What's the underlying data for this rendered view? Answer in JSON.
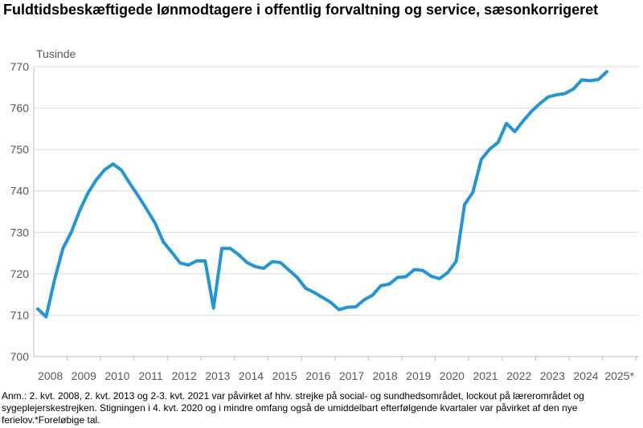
{
  "title": "Fuldtidsbeskæftigede lønmodtagere i offentlig forvaltning og service, sæsonkorrigeret",
  "footnote": "Anm.: 2. kvt. 2008, 2. kvt. 2013 og 2-3. kvt. 2021 var påvirket af hhv. strejke på social- og sundhedsområdet, lockout på lærerområdet og sygeplejerskestrejken. Stigningen i 4. kvt. 2020 og i mindre omfang også de umiddelbart efterfølgende kvartaler var påvirket af den nye ferielov.*Foreløbige tal.",
  "chart_data": {
    "type": "line",
    "title": "Fuldtidsbeskæftigede lønmodtagere i offentlig forvaltning og service, sæsonkorrigeret",
    "ylabel": "Tusinde",
    "xlabel": "",
    "ylim": [
      700,
      770
    ],
    "yticks": [
      700,
      710,
      720,
      730,
      740,
      750,
      760,
      770
    ],
    "grid": true,
    "legend": "none",
    "line_color": "#1f96d6",
    "x_tick_labels": [
      "2008",
      "2009",
      "2010",
      "2011",
      "2012",
      "2013",
      "2014",
      "2015",
      "2016",
      "2017",
      "2018",
      "2019",
      "2020",
      "2021",
      "2022",
      "2023",
      "2024",
      "2025*"
    ],
    "series": [
      {
        "values": [
          711.5,
          709.6,
          718.5,
          726.1,
          730.0,
          735.2,
          739.5,
          742.7,
          745.1,
          746.5,
          745.0,
          741.8,
          738.8,
          735.6,
          732.3,
          727.7,
          725.2,
          722.6,
          722.1,
          723.1,
          723.1,
          711.7,
          726.1,
          726.1,
          724.6,
          722.7,
          721.7,
          721.3,
          722.9,
          722.7,
          720.9,
          719.1,
          716.5,
          715.5,
          714.3,
          713.1,
          711.3,
          711.9,
          712.0,
          713.7,
          714.8,
          717.1,
          717.5,
          719.1,
          719.3,
          721.0,
          720.8,
          719.4,
          718.8,
          720.3,
          723.0,
          736.7,
          739.7,
          747.6,
          750.1,
          751.7,
          756.3,
          754.3,
          756.9,
          759.2,
          761.1,
          762.7,
          763.2,
          763.5,
          764.6,
          766.8,
          766.6,
          766.9,
          768.8
        ]
      }
    ]
  }
}
